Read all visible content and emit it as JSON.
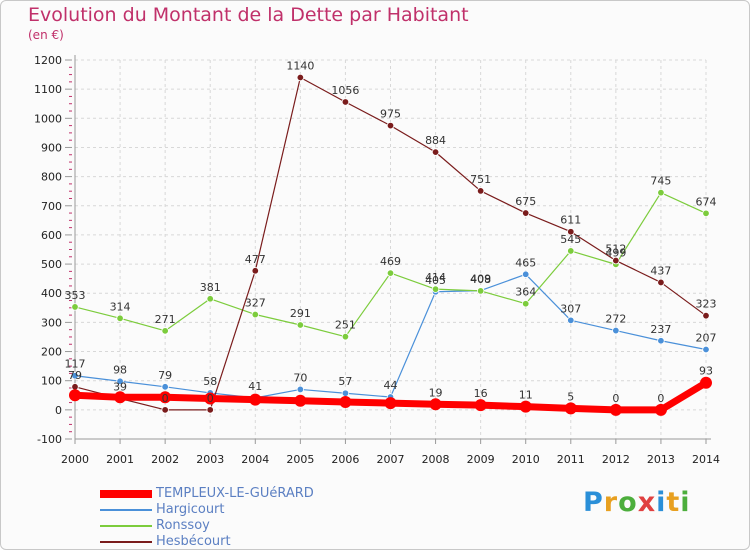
{
  "header": {
    "title": "Evolution du Montant de la Dette par Habitant",
    "unit": "(en €)"
  },
  "logo": {
    "letters": [
      "P",
      "r",
      "o",
      "x",
      "i",
      "t",
      "i"
    ],
    "colors": [
      "#2a8fd8",
      "#e8a020",
      "#4cae3c",
      "#e04040",
      "#2a8fd8",
      "#e8a020",
      "#4cae3c"
    ]
  },
  "chart_data": {
    "type": "line",
    "title": "Evolution du Montant de la Dette par Habitant",
    "ylabel": "(en €)",
    "xlabel": "",
    "x": [
      2000,
      2001,
      2002,
      2003,
      2004,
      2005,
      2006,
      2007,
      2008,
      2009,
      2010,
      2011,
      2012,
      2013,
      2014
    ],
    "ylim": [
      -100,
      1200
    ],
    "yticks": [
      -100,
      0,
      100,
      200,
      300,
      400,
      500,
      600,
      700,
      800,
      900,
      1000,
      1100,
      1200
    ],
    "grid": true,
    "legend_position": "bottom-left",
    "series": [
      {
        "name": "TEMPLEUX-LE-GUéRARD",
        "color": "#ff0000",
        "width": 7,
        "values": [
          50,
          43,
          43,
          39,
          35,
          31,
          27,
          23,
          19,
          16,
          11,
          5,
          0,
          0,
          93
        ],
        "labels": [
          "",
          "",
          "",
          "",
          "",
          "",
          "",
          "",
          "19",
          "16",
          "11",
          "5",
          "0",
          "0",
          "93"
        ]
      },
      {
        "name": "Hargicourt",
        "color": "#4a90d9",
        "width": 1.2,
        "values": [
          117,
          98,
          79,
          58,
          41,
          70,
          57,
          44,
          405,
          409,
          465,
          307,
          272,
          237,
          207
        ],
        "labels": [
          "117",
          "98",
          "79",
          "58",
          "41",
          "70",
          "57",
          "44",
          "405",
          "409",
          "465",
          "307",
          "272",
          "237",
          "207"
        ]
      },
      {
        "name": "Ronssoy",
        "color": "#7ccc3c",
        "width": 1.2,
        "values": [
          353,
          314,
          271,
          381,
          327,
          291,
          251,
          469,
          414,
          408,
          364,
          545,
          499,
          745,
          674
        ],
        "labels": [
          "353",
          "314",
          "271",
          "381",
          "327",
          "291",
          "251",
          "469",
          "414",
          "408",
          "364",
          "545",
          "499",
          "745",
          "674"
        ]
      },
      {
        "name": "Hesbécourt",
        "color": "#7a1c1c",
        "width": 1.2,
        "values": [
          79,
          39,
          0,
          0,
          477,
          1140,
          1056,
          975,
          884,
          751,
          675,
          611,
          512,
          437,
          323
        ],
        "labels": [
          "79",
          "39",
          "0",
          "0",
          "477",
          "1140",
          "1056",
          "975",
          "884",
          "751",
          "675",
          "611",
          "512",
          "437",
          "323"
        ]
      }
    ]
  }
}
